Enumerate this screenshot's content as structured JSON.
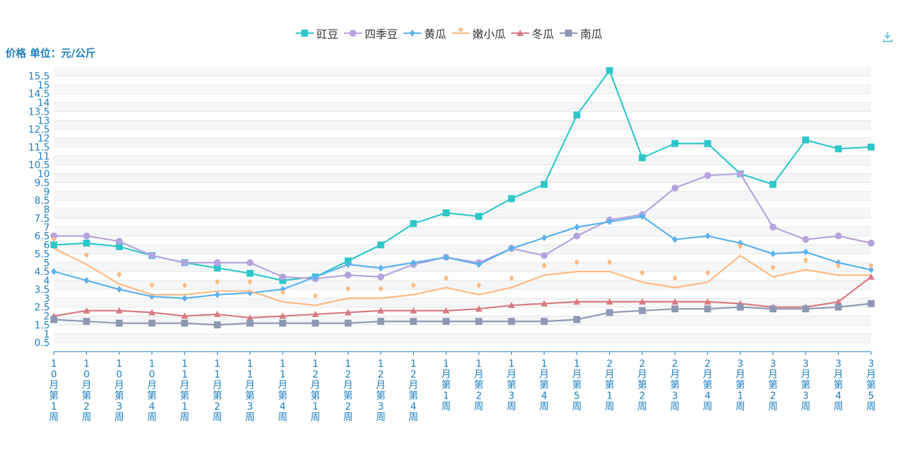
{
  "toolbar": {
    "download_icon": "download-icon"
  },
  "chart_data": {
    "type": "line",
    "ylabel": "价格 单位：元/公斤",
    "ylim": [
      0,
      16
    ],
    "yticks": [
      "0.5",
      "1",
      "1.5",
      "2",
      "2.5",
      "3",
      "3.5",
      "4",
      "4.5",
      "5",
      "5.5",
      "6",
      "6.5",
      "7",
      "7.5",
      "8",
      "8.5",
      "9",
      "9.5",
      "10",
      "10.5",
      "11",
      "11.5",
      "12",
      "12.5",
      "13",
      "13.5",
      "14",
      "14.5",
      "15",
      "15.5"
    ],
    "grid": true,
    "legend_position": "top-center",
    "categories": [
      "10月第1周",
      "10月第2周",
      "10月第3周",
      "10月第4周",
      "11月第1周",
      "11月第2周",
      "11月第3周",
      "11月第4周",
      "12月第1周",
      "12月第2周",
      "12月第3周",
      "12月第4周",
      "1月第1周",
      "1月第2周",
      "1月第3周",
      "1月第4周",
      "1月第5周",
      "2月第1周",
      "2月第2周",
      "2月第3周",
      "2月第4周",
      "3月第1周",
      "3月第2周",
      "3月第3周",
      "3月第4周",
      "3月第5周"
    ],
    "series": [
      {
        "name": "豇豆",
        "color": "#2ec7c9",
        "marker": "square",
        "values": [
          6.0,
          6.1,
          5.9,
          5.4,
          5.0,
          4.7,
          4.4,
          4.0,
          4.2,
          5.1,
          6.0,
          7.2,
          7.8,
          7.6,
          8.6,
          9.4,
          13.3,
          15.8,
          10.9,
          11.7,
          11.7,
          10.0,
          9.4,
          11.9,
          11.4,
          11.5
        ]
      },
      {
        "name": "四季豆",
        "color": "#b6a2de",
        "marker": "circle",
        "values": [
          6.5,
          6.5,
          6.2,
          5.4,
          5.0,
          5.0,
          5.0,
          4.2,
          4.1,
          4.3,
          4.2,
          4.9,
          5.3,
          5.0,
          5.8,
          5.4,
          6.5,
          7.4,
          7.7,
          9.2,
          9.9,
          10.0,
          7.0,
          6.3,
          6.5,
          6.1
        ]
      },
      {
        "name": "黄瓜",
        "color": "#5ab1ef",
        "marker": "diamond",
        "values": [
          4.5,
          4.0,
          3.5,
          3.1,
          3.0,
          3.2,
          3.3,
          3.5,
          4.2,
          4.9,
          4.7,
          5.0,
          5.3,
          4.9,
          5.8,
          6.4,
          7.0,
          7.3,
          7.6,
          6.3,
          6.5,
          6.1,
          5.5,
          5.6,
          5.0,
          4.6
        ]
      },
      {
        "name": "嫩小瓜",
        "color": "#ffb980",
        "marker": "pin",
        "values": [
          5.8,
          4.9,
          3.8,
          3.2,
          3.2,
          3.4,
          3.4,
          2.8,
          2.6,
          3.0,
          3.0,
          3.2,
          3.6,
          3.2,
          3.6,
          4.3,
          4.5,
          4.5,
          3.9,
          3.6,
          3.9,
          5.4,
          4.2,
          4.6,
          4.3,
          4.3
        ]
      },
      {
        "name": "冬瓜",
        "color": "#d87a80",
        "marker": "triangle",
        "values": [
          2.0,
          2.3,
          2.3,
          2.2,
          2.0,
          2.1,
          1.9,
          2.0,
          2.1,
          2.2,
          2.3,
          2.3,
          2.3,
          2.4,
          2.6,
          2.7,
          2.8,
          2.8,
          2.8,
          2.8,
          2.8,
          2.7,
          2.5,
          2.5,
          2.8,
          4.2
        ]
      },
      {
        "name": "南瓜",
        "color": "#8d98b3",
        "marker": "square",
        "values": [
          1.8,
          1.7,
          1.6,
          1.6,
          1.6,
          1.5,
          1.6,
          1.6,
          1.6,
          1.6,
          1.7,
          1.7,
          1.7,
          1.7,
          1.7,
          1.7,
          1.8,
          2.2,
          2.3,
          2.4,
          2.4,
          2.5,
          2.4,
          2.4,
          2.5,
          2.7
        ]
      }
    ]
  }
}
